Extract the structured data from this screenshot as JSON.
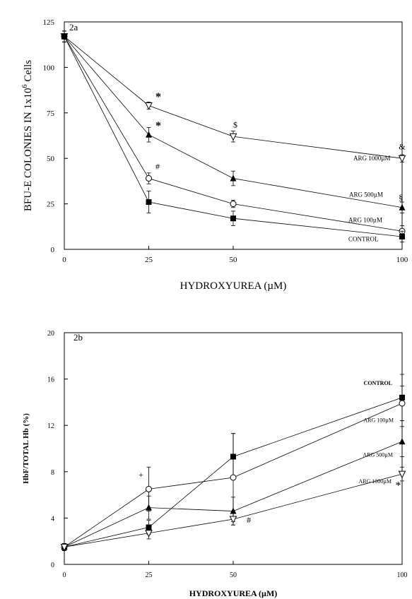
{
  "chart_data": [
    {
      "type": "line",
      "panel_label": "2a",
      "xlabel": "HYDROXYUREA (µM)",
      "ylabel": "BFU-E COLONIES IN 1x10",
      "ylabel_sup": "6",
      "ylabel_suffix": " Cells",
      "xlim": [
        0,
        100
      ],
      "ylim": [
        0,
        125
      ],
      "x_ticks": [
        0,
        25,
        50,
        100
      ],
      "x_tick_labels": [
        "0",
        "25",
        "50",
        "100"
      ],
      "y_ticks": [
        0,
        25,
        50,
        75,
        100,
        125
      ],
      "y_tick_labels": [
        "0",
        "25",
        "50",
        "75",
        "100",
        "125"
      ],
      "x_positions": [
        0,
        25,
        50,
        100
      ],
      "grid": false,
      "series": [
        {
          "name": "ARG 1000µM",
          "marker": "triangle-down-open",
          "values": [
            117,
            79,
            62,
            50
          ],
          "errors": [
            3,
            2,
            3,
            2
          ]
        },
        {
          "name": "ARG 500µM",
          "marker": "triangle-up-filled",
          "values": [
            117,
            63,
            39,
            23
          ],
          "errors": [
            3,
            4,
            4,
            3
          ]
        },
        {
          "name": "ARG 100µM",
          "marker": "circle-open",
          "values": [
            117,
            39,
            25,
            10
          ],
          "errors": [
            3,
            3,
            2,
            3
          ]
        },
        {
          "name": "CONTROL",
          "marker": "square-filled",
          "values": [
            117,
            26,
            17,
            7
          ],
          "errors": [
            3,
            6,
            4,
            3
          ]
        }
      ],
      "annotations": [
        {
          "text": "*",
          "x": 27,
          "y": 82
        },
        {
          "text": "*",
          "x": 27,
          "y": 66
        },
        {
          "text": "#",
          "x": 27,
          "y": 44
        },
        {
          "text": "$",
          "x": 50,
          "y": 67
        },
        {
          "text": "&",
          "x": 99,
          "y": 55
        },
        {
          "text": "§",
          "x": 99,
          "y": 27
        }
      ]
    },
    {
      "type": "line",
      "panel_label": "2b",
      "xlabel": "HYDROXYUREA (µM)",
      "ylabel": "HbF/TOTAL Hb (%)",
      "xlim": [
        0,
        100
      ],
      "ylim": [
        0,
        20
      ],
      "x_ticks": [
        0,
        25,
        50,
        100
      ],
      "x_tick_labels": [
        "0",
        "25",
        "50",
        "100"
      ],
      "y_ticks": [
        0,
        4,
        8,
        12,
        16,
        20
      ],
      "y_tick_labels": [
        "0",
        "4",
        "8",
        "12",
        "16",
        "20"
      ],
      "x_positions": [
        0,
        25,
        50,
        100
      ],
      "grid": false,
      "series": [
        {
          "name": "CONTROL",
          "marker": "square-filled",
          "values": [
            1.5,
            3.2,
            9.3,
            14.4
          ],
          "errors": [
            0.3,
            0.6,
            2.0,
            2.0
          ]
        },
        {
          "name": "ARG 100µM",
          "marker": "circle-open",
          "values": [
            1.5,
            6.5,
            7.5,
            13.9
          ],
          "errors": [
            0.3,
            1.9,
            3.8,
            1.5
          ]
        },
        {
          "name": "ARG 500µM",
          "marker": "triangle-up-filled",
          "values": [
            1.5,
            4.9,
            4.6,
            10.6
          ],
          "errors": [
            0.3,
            1.0,
            1.2,
            1.3
          ]
        },
        {
          "name": "ARG 1000µM",
          "marker": "triangle-down-open",
          "values": [
            1.5,
            2.7,
            3.9,
            7.8
          ],
          "errors": [
            0.3,
            0.5,
            0.5,
            0.6
          ]
        }
      ],
      "annotations": [
        {
          "text": "+",
          "x": 22,
          "y": 7.5
        },
        {
          "text": "#",
          "x": 54,
          "y": 3.6
        },
        {
          "text": "*",
          "x": 98,
          "y": 6.5
        }
      ]
    }
  ]
}
